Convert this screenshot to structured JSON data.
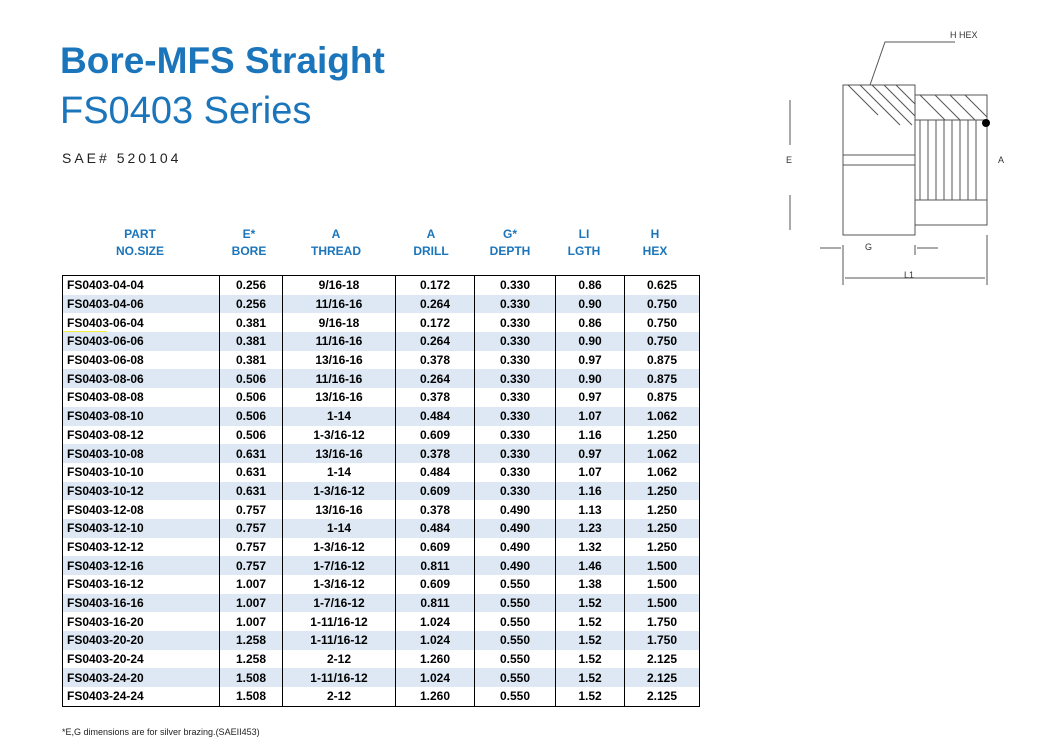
{
  "header": {
    "title": "Bore-MFS Straight",
    "subtitle": "FS0403 Series",
    "sae": "SAE# 520104"
  },
  "table": {
    "headers": [
      [
        "PART",
        "NO.SIZE"
      ],
      [
        "E*",
        "BORE"
      ],
      [
        "A",
        "THREAD"
      ],
      [
        "A",
        "DRILL"
      ],
      [
        "G*",
        "DEPTH"
      ],
      [
        "LI",
        "LGTH"
      ],
      [
        "H",
        "HEX"
      ]
    ],
    "rows": [
      [
        "FS0403-04-04",
        "0.256",
        "9/16-18",
        "0.172",
        "0.330",
        "0.86",
        "0.625"
      ],
      [
        "FS0403-04-06",
        "0.256",
        "11/16-16",
        "0.264",
        "0.330",
        "0.90",
        "0.750"
      ],
      [
        "FS0403-06-04",
        "0.381",
        "9/16-18",
        "0.172",
        "0.330",
        "0.86",
        "0.750"
      ],
      [
        "FS0403-06-06",
        "0.381",
        "11/16-16",
        "0.264",
        "0.330",
        "0.90",
        "0.750"
      ],
      [
        "FS0403-06-08",
        "0.381",
        "13/16-16",
        "0.378",
        "0.330",
        "0.97",
        "0.875"
      ],
      [
        "FS0403-08-06",
        "0.506",
        "11/16-16",
        "0.264",
        "0.330",
        "0.90",
        "0.875"
      ],
      [
        "FS0403-08-08",
        "0.506",
        "13/16-16",
        "0.378",
        "0.330",
        "0.97",
        "0.875"
      ],
      [
        "FS0403-08-10",
        "0.506",
        "1-14",
        "0.484",
        "0.330",
        "1.07",
        "1.062"
      ],
      [
        "FS0403-08-12",
        "0.506",
        "1-3/16-12",
        "0.609",
        "0.330",
        "1.16",
        "1.250"
      ],
      [
        "FS0403-10-08",
        "0.631",
        "13/16-16",
        "0.378",
        "0.330",
        "0.97",
        "1.062"
      ],
      [
        "FS0403-10-10",
        "0.631",
        "1-14",
        "0.484",
        "0.330",
        "1.07",
        "1.062"
      ],
      [
        "FS0403-10-12",
        "0.631",
        "1-3/16-12",
        "0.609",
        "0.330",
        "1.16",
        "1.250"
      ],
      [
        "FS0403-12-08",
        "0.757",
        "13/16-16",
        "0.378",
        "0.490",
        "1.13",
        "1.250"
      ],
      [
        "FS0403-12-10",
        "0.757",
        "1-14",
        "0.484",
        "0.490",
        "1.23",
        "1.250"
      ],
      [
        "FS0403-12-12",
        "0.757",
        "1-3/16-12",
        "0.609",
        "0.490",
        "1.32",
        "1.250"
      ],
      [
        "FS0403-12-16",
        "0.757",
        "1-7/16-12",
        "0.811",
        "0.490",
        "1.46",
        "1.500"
      ],
      [
        "FS0403-16-12",
        "1.007",
        "1-3/16-12",
        "0.609",
        "0.550",
        "1.38",
        "1.500"
      ],
      [
        "FS0403-16-16",
        "1.007",
        "1-7/16-12",
        "0.811",
        "0.550",
        "1.52",
        "1.500"
      ],
      [
        "FS0403-16-20",
        "1.007",
        "1-11/16-12",
        "1.024",
        "0.550",
        "1.52",
        "1.750"
      ],
      [
        "FS0403-20-20",
        "1.258",
        "1-11/16-12",
        "1.024",
        "0.550",
        "1.52",
        "1.750"
      ],
      [
        "FS0403-20-24",
        "1.258",
        "2-12",
        "1.260",
        "0.550",
        "1.52",
        "2.125"
      ],
      [
        "FS0403-24-20",
        "1.508",
        "1-11/16-12",
        "1.024",
        "0.550",
        "1.52",
        "2.125"
      ],
      [
        "FS0403-24-24",
        "1.508",
        "2-12",
        "1.260",
        "0.550",
        "1.52",
        "2.125"
      ]
    ]
  },
  "footnote": "*E,G dimensions are for silver brazing.(SAEII453)",
  "diagram": {
    "labels": [
      "H HEX",
      "E",
      "A",
      "G",
      "L1"
    ]
  }
}
